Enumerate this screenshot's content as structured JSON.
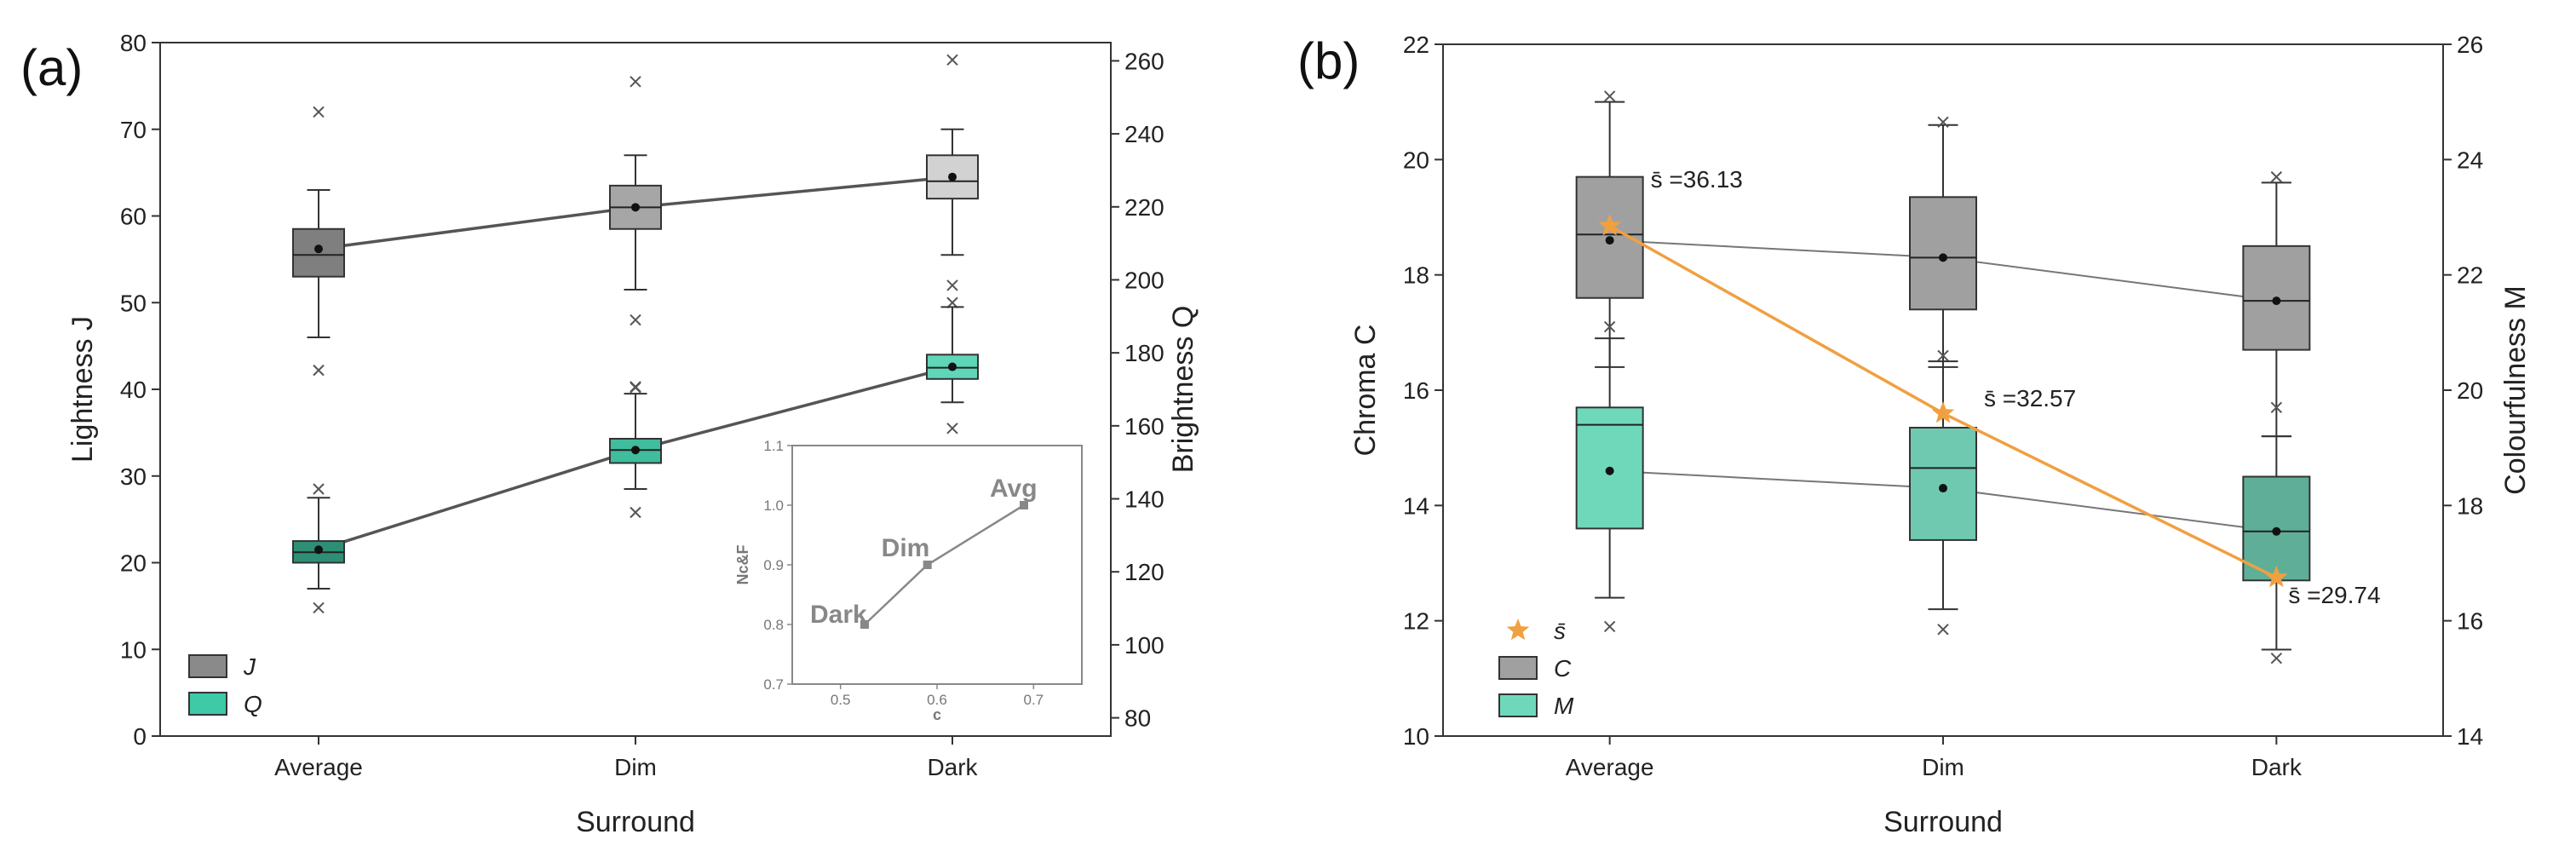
{
  "chart_data": [
    {
      "panel_label": "(a)",
      "type": "box",
      "xlabel": "Surround",
      "ylabel": "Lightness J",
      "y2label": "Brightness Q",
      "categories": [
        "Average",
        "Dim",
        "Dark"
      ],
      "ylim": [
        0,
        80
      ],
      "y2lim": [
        75,
        265
      ],
      "yticks": [
        "0",
        "10",
        "20",
        "30",
        "40",
        "50",
        "60",
        "70",
        "80"
      ],
      "y2ticks": [
        "80",
        "100",
        "120",
        "140",
        "160",
        "180",
        "200",
        "220",
        "240",
        "260"
      ],
      "legend": [
        {
          "label": "J",
          "color": "#8a8a8a"
        },
        {
          "label": "Q",
          "color": "#3ec9a7"
        }
      ],
      "series": [
        {
          "name": "J",
          "axis": "left",
          "mean_line_color": "#555555",
          "boxes": [
            {
              "category": "Average",
              "color": "#7f7f7f",
              "whisker_low": 46,
              "q1": 53,
              "median": 55.5,
              "q3": 58.5,
              "whisker_high": 63,
              "mean": 56.2,
              "outliers": [
                72,
                42.2
              ]
            },
            {
              "category": "Dim",
              "color": "#a6a6a6",
              "whisker_low": 51.5,
              "q1": 58.5,
              "median": 61,
              "q3": 63.5,
              "whisker_high": 67,
              "mean": 61,
              "outliers": [
                75.5,
                48,
                40.3
              ]
            },
            {
              "category": "Dark",
              "color": "#d2d2d2",
              "whisker_low": 55.5,
              "q1": 62,
              "median": 64,
              "q3": 67,
              "whisker_high": 70,
              "mean": 64.5,
              "outliers": [
                78,
                52,
                50
              ]
            }
          ]
        },
        {
          "name": "Q",
          "axis": "left",
          "mean_line_color": "#555555",
          "boxes": [
            {
              "category": "Average",
              "color": "#2e8f76",
              "whisker_low": 17,
              "q1": 20,
              "median": 21.2,
              "q3": 22.5,
              "whisker_high": 27.5,
              "mean": 21.5,
              "outliers": [
                14.8,
                28.5
              ]
            },
            {
              "category": "Dim",
              "color": "#3fbd9c",
              "whisker_low": 28.5,
              "q1": 31.5,
              "median": 33,
              "q3": 34.3,
              "whisker_high": 39.5,
              "mean": 33,
              "outliers": [
                25.8,
                40.2
              ]
            },
            {
              "category": "Dark",
              "color": "#5fd6b7",
              "whisker_low": 38.5,
              "q1": 41.2,
              "median": 42.5,
              "q3": 44,
              "whisker_high": 49.5,
              "mean": 42.6,
              "outliers": [
                35.5
              ]
            }
          ]
        }
      ],
      "inset": {
        "type": "line",
        "xlabel": "c",
        "ylabel": "Nc&F",
        "xlim": [
          0.45,
          0.75
        ],
        "ylim": [
          0.7,
          1.1
        ],
        "xticks": [
          "0.5",
          "0.6",
          "0.7"
        ],
        "yticks": [
          "0.7",
          "0.8",
          "0.9",
          "1.0",
          "1.1"
        ],
        "x": [
          0.525,
          0.59,
          0.69
        ],
        "y": [
          0.8,
          0.9,
          1.0
        ],
        "labels": [
          "Dark",
          "Dim",
          "Avg"
        ]
      }
    },
    {
      "panel_label": "(b)",
      "type": "box",
      "xlabel": "Surround",
      "ylabel": "Chroma C",
      "y2label": "Colourfulness M",
      "categories": [
        "Average",
        "Dim",
        "Dark"
      ],
      "ylim": [
        10,
        22
      ],
      "y2lim": [
        14,
        26
      ],
      "yticks": [
        "10",
        "12",
        "14",
        "16",
        "18",
        "20",
        "22"
      ],
      "y2ticks": [
        "14",
        "16",
        "18",
        "20",
        "22",
        "24",
        "26"
      ],
      "legend": [
        {
          "label": "s̄",
          "color": "#f0a040",
          "marker": "star"
        },
        {
          "label": "C",
          "color": "#a0a0a0"
        },
        {
          "label": "M",
          "color": "#6fd8bb"
        }
      ],
      "series": [
        {
          "name": "C",
          "axis": "left",
          "mean_line_color": "#777777",
          "boxes": [
            {
              "category": "Average",
              "color": "#a0a0a0",
              "whisker_low": 16.4,
              "q1": 17.6,
              "median": 18.7,
              "q3": 19.7,
              "whisker_high": 21.0,
              "mean": 18.6,
              "outliers": [
                21.1,
                17.1
              ]
            },
            {
              "category": "Dim",
              "color": "#a0a0a0",
              "whisker_low": 16.4,
              "q1": 17.4,
              "median": 18.3,
              "q3": 19.35,
              "whisker_high": 20.6,
              "mean": 18.3,
              "outliers": [
                20.65,
                16.6
              ]
            },
            {
              "category": "Dark",
              "color": "#a0a0a0",
              "whisker_low": 15.2,
              "q1": 16.7,
              "median": 17.55,
              "q3": 18.5,
              "whisker_high": 19.6,
              "mean": 17.55,
              "outliers": [
                19.7,
                15.7
              ]
            }
          ]
        },
        {
          "name": "M",
          "axis": "right",
          "mean_line_color": "#777777",
          "boxes": [
            {
              "category": "Average",
              "color": "#6fd8bb",
              "whisker_low": 16.4,
              "q1": 17.6,
              "median": 19.4,
              "q3": 19.7,
              "whisker_high": 20.9,
              "mean": 18.6,
              "outliers": [
                15.9
              ]
            },
            {
              "category": "Dim",
              "color": "#6fc9b0",
              "whisker_low": 16.2,
              "q1": 17.4,
              "median": 18.65,
              "q3": 19.35,
              "whisker_high": 20.5,
              "mean": 18.3,
              "outliers": [
                15.85
              ]
            },
            {
              "category": "Dark",
              "color": "#5faf98",
              "whisker_low": 15.5,
              "q1": 16.7,
              "median": 17.55,
              "q3": 18.5,
              "whisker_high": 19.2,
              "mean": 17.55,
              "outliers": [
                15.35
              ]
            }
          ]
        },
        {
          "name": "s̄",
          "axis": "left",
          "type": "line",
          "color": "#f0a040",
          "values": [
            18.85,
            15.6,
            12.75
          ],
          "labels": [
            "s̄ =36.13",
            "s̄ =32.57",
            "s̄ =29.74"
          ]
        }
      ]
    }
  ]
}
